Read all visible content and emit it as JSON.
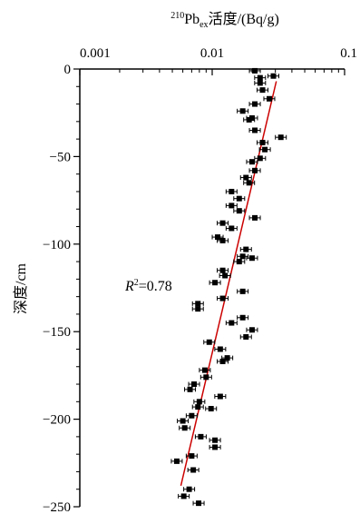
{
  "chart_data": {
    "type": "scatter",
    "title": "",
    "x_axis": {
      "label_base": "Pb",
      "label_sup": "210",
      "label_sub": "ex",
      "label_rest": "活度/(Bq/g)",
      "scale": "log",
      "range": [
        0.001,
        0.1
      ],
      "ticks": [
        0.001,
        0.01,
        0.1
      ],
      "tick_labels": [
        "0.001",
        "0.01",
        "0.1"
      ],
      "position": "top"
    },
    "y_axis": {
      "label": "深度/cm",
      "range": [
        -250,
        0
      ],
      "ticks": [
        0,
        -50,
        -100,
        -150,
        -200,
        -250
      ],
      "tick_labels": [
        "0",
        "−50",
        "−100",
        "−150",
        "−200",
        "−250"
      ]
    },
    "annotation": {
      "italic": "R",
      "sup": "2",
      "text": "=0.78"
    },
    "grid": false,
    "error_bars": "horizontal",
    "marker_color": "#000000",
    "fit_line": {
      "color": "#cc0000",
      "points": [
        [
          0.0058,
          -238
        ],
        [
          0.0305,
          -7
        ]
      ]
    },
    "points": [
      {
        "x": 0.021,
        "y": -1
      },
      {
        "x": 0.023,
        "y": -5
      },
      {
        "x": 0.029,
        "y": -4
      },
      {
        "x": 0.023,
        "y": -8
      },
      {
        "x": 0.024,
        "y": -12
      },
      {
        "x": 0.027,
        "y": -17
      },
      {
        "x": 0.021,
        "y": -20
      },
      {
        "x": 0.017,
        "y": -24
      },
      {
        "x": 0.02,
        "y": -28
      },
      {
        "x": 0.019,
        "y": -29
      },
      {
        "x": 0.021,
        "y": -35
      },
      {
        "x": 0.033,
        "y": -39
      },
      {
        "x": 0.024,
        "y": -42
      },
      {
        "x": 0.025,
        "y": -46
      },
      {
        "x": 0.023,
        "y": -51
      },
      {
        "x": 0.02,
        "y": -53
      },
      {
        "x": 0.021,
        "y": -58
      },
      {
        "x": 0.018,
        "y": -62
      },
      {
        "x": 0.019,
        "y": -65
      },
      {
        "x": 0.014,
        "y": -70
      },
      {
        "x": 0.016,
        "y": -74
      },
      {
        "x": 0.014,
        "y": -78
      },
      {
        "x": 0.016,
        "y": -81
      },
      {
        "x": 0.021,
        "y": -85
      },
      {
        "x": 0.012,
        "y": -88
      },
      {
        "x": 0.014,
        "y": -91
      },
      {
        "x": 0.011,
        "y": -96
      },
      {
        "x": 0.012,
        "y": -98
      },
      {
        "x": 0.018,
        "y": -103
      },
      {
        "x": 0.017,
        "y": -107
      },
      {
        "x": 0.02,
        "y": -108
      },
      {
        "x": 0.016,
        "y": -110
      },
      {
        "x": 0.012,
        "y": -115
      },
      {
        "x": 0.0125,
        "y": -118
      },
      {
        "x": 0.0105,
        "y": -122
      },
      {
        "x": 0.017,
        "y": -127
      },
      {
        "x": 0.012,
        "y": -131
      },
      {
        "x": 0.0078,
        "y": -134
      },
      {
        "x": 0.0078,
        "y": -137
      },
      {
        "x": 0.017,
        "y": -142
      },
      {
        "x": 0.014,
        "y": -145
      },
      {
        "x": 0.02,
        "y": -149
      },
      {
        "x": 0.018,
        "y": -153
      },
      {
        "x": 0.0095,
        "y": -156
      },
      {
        "x": 0.0115,
        "y": -160
      },
      {
        "x": 0.013,
        "y": -165
      },
      {
        "x": 0.012,
        "y": -167
      },
      {
        "x": 0.0088,
        "y": -172
      },
      {
        "x": 0.009,
        "y": -176
      },
      {
        "x": 0.0073,
        "y": -180
      },
      {
        "x": 0.0068,
        "y": -183
      },
      {
        "x": 0.0115,
        "y": -187
      },
      {
        "x": 0.008,
        "y": -190
      },
      {
        "x": 0.0078,
        "y": -193
      },
      {
        "x": 0.0098,
        "y": -194
      },
      {
        "x": 0.007,
        "y": -198
      },
      {
        "x": 0.006,
        "y": -201
      },
      {
        "x": 0.0062,
        "y": -205
      },
      {
        "x": 0.0082,
        "y": -210
      },
      {
        "x": 0.0105,
        "y": -212
      },
      {
        "x": 0.0105,
        "y": -216
      },
      {
        "x": 0.007,
        "y": -221
      },
      {
        "x": 0.0054,
        "y": -224
      },
      {
        "x": 0.0072,
        "y": -229
      },
      {
        "x": 0.0067,
        "y": -240
      },
      {
        "x": 0.0061,
        "y": -244
      },
      {
        "x": 0.0079,
        "y": -248
      }
    ]
  }
}
